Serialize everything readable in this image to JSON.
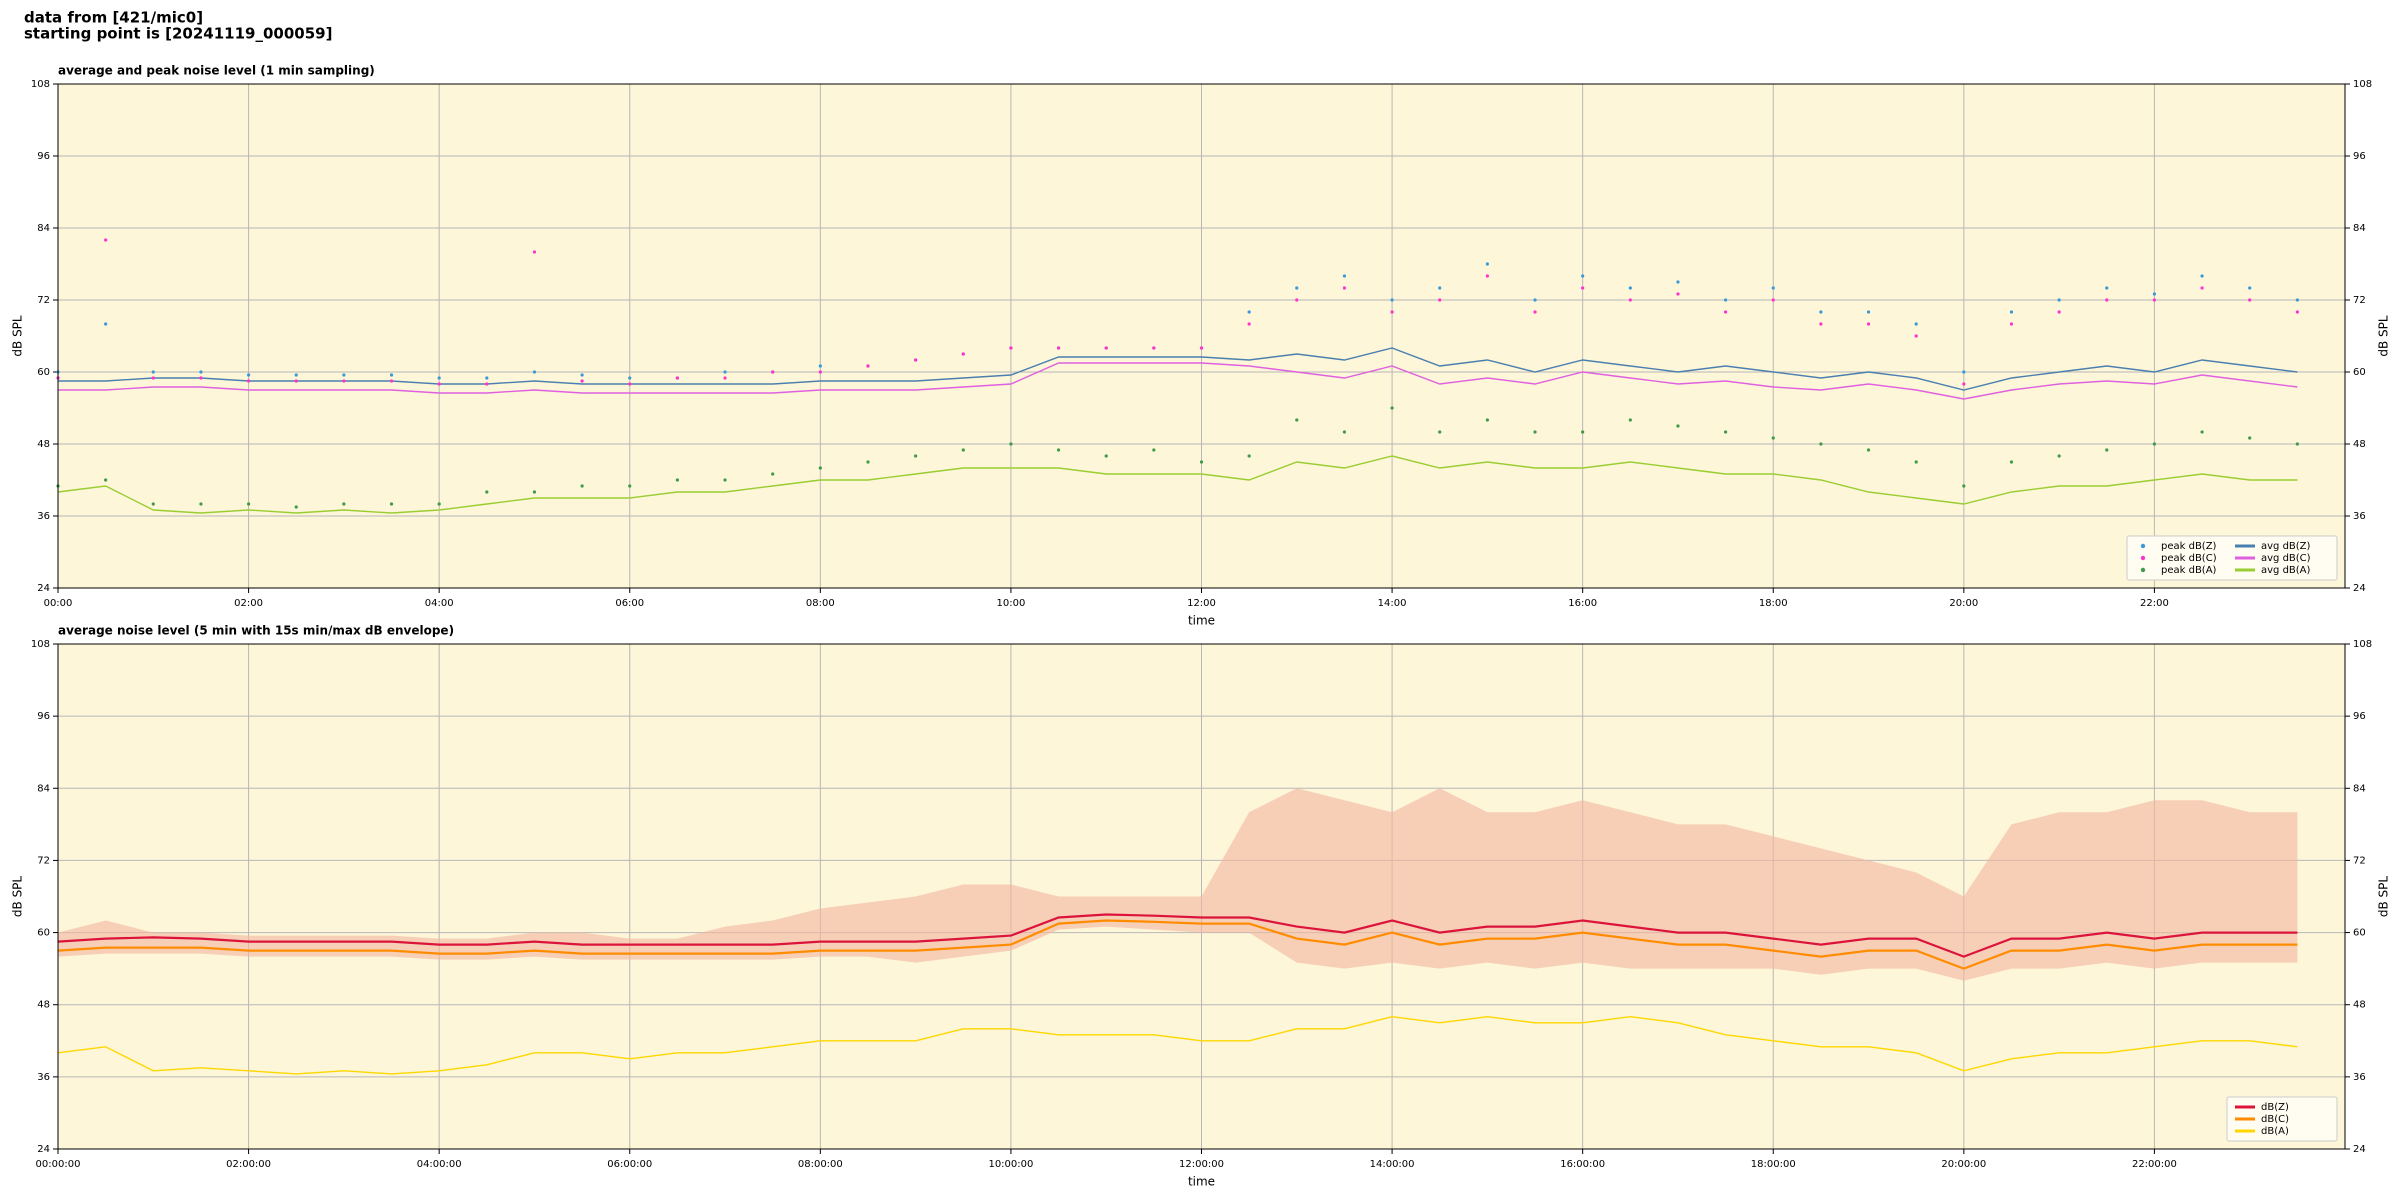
{
  "header": {
    "source": "data from [421/mic0]",
    "start": "starting point is [20241119_000059]"
  },
  "chart_data": [
    {
      "type": "line",
      "title": "average and peak noise level (1 min sampling)",
      "x_label": "time",
      "y_label": "dB SPL",
      "x": [
        0,
        0.5,
        1,
        1.5,
        2,
        2.5,
        3,
        3.5,
        4,
        4.5,
        5,
        5.5,
        6,
        6.5,
        7,
        7.5,
        8,
        8.5,
        9,
        9.5,
        10,
        10.5,
        11,
        11.5,
        12,
        12.5,
        13,
        13.5,
        14,
        14.5,
        15,
        15.5,
        16,
        16.5,
        17,
        17.5,
        18,
        18.5,
        19,
        19.5,
        20,
        20.5,
        21,
        21.5,
        22,
        22.5,
        23,
        23.5
      ],
      "xlim": [
        0,
        24
      ],
      "xticks": [
        {
          "value": 0,
          "label": "00:00"
        },
        {
          "value": 2,
          "label": "02:00"
        },
        {
          "value": 4,
          "label": "04:00"
        },
        {
          "value": 6,
          "label": "06:00"
        },
        {
          "value": 8,
          "label": "08:00"
        },
        {
          "value": 10,
          "label": "10:00"
        },
        {
          "value": 12,
          "label": "12:00"
        },
        {
          "value": 14,
          "label": "14:00"
        },
        {
          "value": 16,
          "label": "16:00"
        },
        {
          "value": 18,
          "label": "18:00"
        },
        {
          "value": 20,
          "label": "20:00"
        },
        {
          "value": 22,
          "label": "22:00"
        }
      ],
      "ylim": [
        24,
        108
      ],
      "yticks": [
        24,
        36,
        48,
        60,
        72,
        84,
        96,
        108
      ],
      "grid": true,
      "legend": "lower right",
      "series": [
        {
          "name": "peak dB(Z)",
          "color": "#3a9ad9",
          "marker": "dot",
          "values": [
            60,
            68,
            60,
            60,
            59.5,
            59.5,
            59.5,
            59.5,
            59,
            59,
            60,
            59.5,
            59,
            59,
            60,
            60,
            61,
            61,
            62,
            63,
            64,
            64,
            64,
            64,
            64,
            70,
            74,
            76,
            72,
            74,
            78,
            72,
            76,
            74,
            75,
            72,
            74,
            70,
            70,
            68,
            60,
            70,
            72,
            74,
            73,
            76,
            74,
            72
          ]
        },
        {
          "name": "peak dB(C)",
          "color": "#ff33cc",
          "marker": "dot",
          "values": [
            59,
            82,
            59,
            59,
            58.5,
            58.5,
            58.5,
            58.5,
            58,
            58,
            80,
            58.5,
            58,
            59,
            59,
            60,
            60,
            61,
            62,
            63,
            64,
            64,
            64,
            64,
            64,
            68,
            72,
            74,
            70,
            72,
            76,
            70,
            74,
            72,
            73,
            70,
            72,
            68,
            68,
            66,
            58,
            68,
            70,
            72,
            72,
            74,
            72,
            70
          ]
        },
        {
          "name": "peak dB(A)",
          "color": "#3f9a4a",
          "marker": "dot",
          "values": [
            41,
            42,
            38,
            38,
            38,
            37.5,
            38,
            38,
            38,
            40,
            40,
            41,
            41,
            42,
            42,
            43,
            44,
            45,
            46,
            47,
            48,
            47,
            46,
            47,
            45,
            46,
            52,
            50,
            54,
            50,
            52,
            50,
            50,
            52,
            51,
            50,
            49,
            48,
            47,
            45,
            41,
            45,
            46,
            47,
            48,
            50,
            49,
            48
          ]
        },
        {
          "name": "avg dB(Z)",
          "color": "#4a7fb0",
          "marker": "line",
          "values": [
            58.5,
            58.5,
            59,
            59,
            58.5,
            58.5,
            58.5,
            58.5,
            58,
            58,
            58.5,
            58,
            58,
            58,
            58,
            58,
            58.5,
            58.5,
            58.5,
            59,
            59.5,
            62.5,
            62.5,
            62.5,
            62.5,
            62,
            63,
            62,
            64,
            61,
            62,
            60,
            62,
            61,
            60,
            61,
            60,
            59,
            60,
            59,
            57,
            59,
            60,
            61,
            60,
            62,
            61,
            60
          ]
        },
        {
          "name": "avg dB(C)",
          "color": "#e060e0",
          "marker": "line",
          "values": [
            57,
            57,
            57.5,
            57.5,
            57,
            57,
            57,
            57,
            56.5,
            56.5,
            57,
            56.5,
            56.5,
            56.5,
            56.5,
            56.5,
            57,
            57,
            57,
            57.5,
            58,
            61.5,
            61.5,
            61.5,
            61.5,
            61,
            60,
            59,
            61,
            58,
            59,
            58,
            60,
            59,
            58,
            58.5,
            57.5,
            57,
            58,
            57,
            55.5,
            57,
            58,
            58.5,
            58,
            59.5,
            58.5,
            57.5
          ]
        },
        {
          "name": "avg dB(A)",
          "color": "#9acd32",
          "marker": "line",
          "values": [
            40,
            41,
            37,
            36.5,
            37,
            36.5,
            37,
            36.5,
            37,
            38,
            39,
            39,
            39,
            40,
            40,
            41,
            42,
            42,
            43,
            44,
            44,
            44,
            43,
            43,
            43,
            42,
            45,
            44,
            46,
            44,
            45,
            44,
            44,
            45,
            44,
            43,
            43,
            42,
            40,
            39,
            38,
            40,
            41,
            41,
            42,
            43,
            42,
            42
          ]
        }
      ]
    },
    {
      "type": "line",
      "title": "average noise level (5 min with 15s min/max dB envelope)",
      "x_label": "time",
      "y_label": "dB SPL",
      "x": [
        0,
        0.5,
        1,
        1.5,
        2,
        2.5,
        3,
        3.5,
        4,
        4.5,
        5,
        5.5,
        6,
        6.5,
        7,
        7.5,
        8,
        8.5,
        9,
        9.5,
        10,
        10.5,
        11,
        11.5,
        12,
        12.5,
        13,
        13.5,
        14,
        14.5,
        15,
        15.5,
        16,
        16.5,
        17,
        17.5,
        18,
        18.5,
        19,
        19.5,
        20,
        20.5,
        21,
        21.5,
        22,
        22.5,
        23,
        23.5
      ],
      "xlim": [
        0,
        24
      ],
      "xticks": [
        {
          "value": 0,
          "label": "00:00:00"
        },
        {
          "value": 2,
          "label": "02:00:00"
        },
        {
          "value": 4,
          "label": "04:00:00"
        },
        {
          "value": 6,
          "label": "06:00:00"
        },
        {
          "value": 8,
          "label": "08:00:00"
        },
        {
          "value": 10,
          "label": "10:00:00"
        },
        {
          "value": 12,
          "label": "12:00:00"
        },
        {
          "value": 14,
          "label": "14:00:00"
        },
        {
          "value": 16,
          "label": "16:00:00"
        },
        {
          "value": 18,
          "label": "18:00:00"
        },
        {
          "value": 20,
          "label": "20:00:00"
        },
        {
          "value": 22,
          "label": "22:00:00"
        }
      ],
      "ylim": [
        24,
        108
      ],
      "yticks": [
        24,
        36,
        48,
        60,
        72,
        84,
        96,
        108
      ],
      "grid": true,
      "legend": "lower right",
      "envelope": {
        "color": "#f4b6a0",
        "high": [
          60,
          62,
          60,
          60,
          59.5,
          59.5,
          59.5,
          59.5,
          59,
          59,
          60,
          60,
          59,
          59,
          61,
          62,
          64,
          65,
          66,
          68,
          68,
          66,
          66,
          66,
          66,
          80,
          84,
          82,
          80,
          84,
          80,
          80,
          82,
          80,
          78,
          78,
          76,
          74,
          72,
          70,
          66,
          78,
          80,
          80,
          82,
          82,
          80,
          80
        ],
        "low": [
          56,
          56.5,
          56.5,
          56.5,
          56,
          56,
          56,
          56,
          55.5,
          55.5,
          56,
          55.5,
          55.5,
          55.5,
          55.5,
          55.5,
          56,
          56,
          55,
          56,
          57,
          60.5,
          61,
          60.5,
          60,
          60,
          55,
          54,
          55,
          54,
          55,
          54,
          55,
          54,
          54,
          54,
          54,
          53,
          54,
          54,
          52,
          54,
          54,
          55,
          54,
          55,
          55,
          55
        ]
      },
      "series": [
        {
          "name": "dB(Z)",
          "color": "#dc143c",
          "marker": "line",
          "values": [
            58.5,
            59,
            59.2,
            59,
            58.5,
            58.5,
            58.5,
            58.5,
            58,
            58,
            58.5,
            58,
            58,
            58,
            58,
            58,
            58.5,
            58.5,
            58.5,
            59,
            59.5,
            62.5,
            63,
            62.8,
            62.5,
            62.5,
            61,
            60,
            62,
            60,
            61,
            61,
            62,
            61,
            60,
            60,
            59,
            58,
            59,
            59,
            56,
            59,
            59,
            60,
            59,
            60,
            60,
            60
          ]
        },
        {
          "name": "dB(C)",
          "color": "#ff8c00",
          "marker": "line",
          "values": [
            57,
            57.5,
            57.5,
            57.5,
            57,
            57,
            57,
            57,
            56.5,
            56.5,
            57,
            56.5,
            56.5,
            56.5,
            56.5,
            56.5,
            57,
            57,
            57,
            57.5,
            58,
            61.5,
            62,
            61.8,
            61.5,
            61.5,
            59,
            58,
            60,
            58,
            59,
            59,
            60,
            59,
            58,
            58,
            57,
            56,
            57,
            57,
            54,
            57,
            57,
            58,
            57,
            58,
            58,
            58
          ]
        },
        {
          "name": "dB(A)",
          "color": "#ffd700",
          "marker": "line",
          "values": [
            40,
            41,
            37,
            37.5,
            37,
            36.5,
            37,
            36.5,
            37,
            38,
            40,
            40,
            39,
            40,
            40,
            41,
            42,
            42,
            42,
            44,
            44,
            43,
            43,
            43,
            42,
            42,
            44,
            44,
            46,
            45,
            46,
            45,
            45,
            46,
            45,
            43,
            42,
            41,
            41,
            40,
            37,
            39,
            40,
            40,
            41,
            42,
            42,
            41
          ]
        }
      ]
    }
  ]
}
